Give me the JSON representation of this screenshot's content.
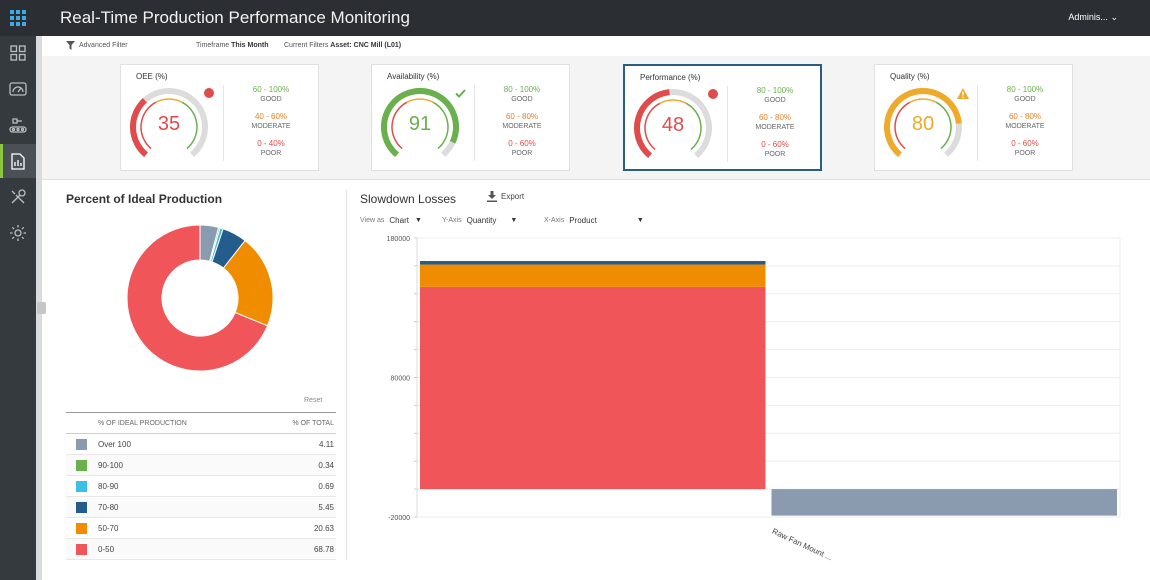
{
  "app": {
    "title": "Real-Time Production Performance Monitoring",
    "user": "Adminis..."
  },
  "sidebar": {
    "items": [
      {
        "icon": "dashboard-grid-icon",
        "active": false
      },
      {
        "icon": "speedometer-icon",
        "active": false
      },
      {
        "icon": "conveyor-icon",
        "active": false
      },
      {
        "icon": "report-document-icon",
        "active": true
      },
      {
        "icon": "tools-icon",
        "active": false
      },
      {
        "icon": "gear-icon",
        "active": false
      }
    ]
  },
  "filterbar": {
    "advanced_filter": "Advanced Filter",
    "timeframe_label": "Timeframe",
    "timeframe_value": "This Month",
    "filters_label": "Current Filters",
    "filters_value": "Asset: CNC Mill (L01)"
  },
  "kpis": [
    {
      "title": "OEE (%)",
      "value": "35",
      "fraction": 0.35,
      "value_color": "#e04b4b",
      "status": "bad",
      "active": false,
      "legend": [
        {
          "range": "60 - 100%",
          "label": "GOOD"
        },
        {
          "range": "40 - 60%",
          "label": "MODERATE"
        },
        {
          "range": "0 - 40%",
          "label": "POOR"
        }
      ]
    },
    {
      "title": "Availability (%)",
      "value": "91",
      "fraction": 0.91,
      "value_color": "#6ab04c",
      "status": "good",
      "active": false,
      "legend": [
        {
          "range": "80 - 100%",
          "label": "GOOD"
        },
        {
          "range": "60 - 80%",
          "label": "MODERATE"
        },
        {
          "range": "0 - 60%",
          "label": "POOR"
        }
      ]
    },
    {
      "title": "Performance (%)",
      "value": "48",
      "fraction": 0.48,
      "value_color": "#e04b4b",
      "status": "bad",
      "active": true,
      "legend": [
        {
          "range": "80 - 100%",
          "label": "GOOD"
        },
        {
          "range": "60 - 80%",
          "label": "MODERATE"
        },
        {
          "range": "0 - 60%",
          "label": "POOR"
        }
      ]
    },
    {
      "title": "Quality (%)",
      "value": "80",
      "fraction": 0.8,
      "value_color": "#efaa2a",
      "status": "warning",
      "active": false,
      "legend": [
        {
          "range": "80 - 100%",
          "label": "GOOD"
        },
        {
          "range": "60 - 80%",
          "label": "MODERATE"
        },
        {
          "range": "0 - 60%",
          "label": "POOR"
        }
      ]
    }
  ],
  "pie_panel": {
    "title": "Percent of Ideal Production",
    "reset": "Reset",
    "col1": "% of Ideal Production",
    "col2": "% of Total"
  },
  "pie_chart": {
    "type": "pie",
    "rows": [
      {
        "label": "Over 100",
        "value": "4.11",
        "color": "#8a9bb0"
      },
      {
        "label": "90-100",
        "value": "0.34",
        "color": "#6ab04c"
      },
      {
        "label": "80-90",
        "value": "0.69",
        "color": "#3cbfe6"
      },
      {
        "label": "70-80",
        "value": "5.45",
        "color": "#245d8c"
      },
      {
        "label": "50-70",
        "value": "20.63",
        "color": "#f08c00"
      },
      {
        "label": "0-50",
        "value": "68.78",
        "color": "#f05559"
      }
    ]
  },
  "bar_panel": {
    "title": "Slowdown Losses",
    "export": "Export",
    "view_label": "View as",
    "view_value": "Chart",
    "y_label": "Y-Axis",
    "y_value": "Quantity",
    "x_label": "X-Axis",
    "x_value": "Product"
  },
  "chart_data": {
    "type": "bar",
    "categories": [
      "",
      "Raw Fan Mount ..."
    ],
    "ylim": [
      -20000,
      180000
    ],
    "yticks": [
      "180000",
      "80000",
      "-20000"
    ],
    "stacks": [
      [
        {
          "value": 145000,
          "color": "#f05559"
        },
        {
          "value": 16000,
          "color": "#f08c00"
        },
        {
          "value": 2500,
          "color": "#245d8c"
        }
      ],
      [
        {
          "value": -19000,
          "color": "#8a9bb0"
        }
      ]
    ]
  }
}
